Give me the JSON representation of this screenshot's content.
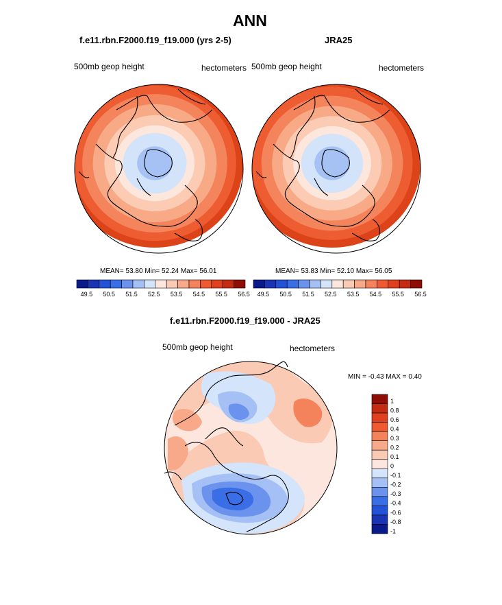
{
  "page_title": "ANN",
  "chart_data": [
    {
      "type": "contour-map",
      "title": "f.e11.rbn.F2000.f19_f19.000 (yrs 2-5)",
      "left_label": "500mb geop height",
      "right_label": "hectometers",
      "stats_text": "MEAN=  53.80  Min=  52.24  Max=  56.01",
      "stats": {
        "mean": 53.8,
        "min": 52.24,
        "max": 56.01
      },
      "colorbar": {
        "colors": [
          "#0a1a8a",
          "#1b33b5",
          "#2452d6",
          "#3a6ee6",
          "#6b93ee",
          "#a5c0f4",
          "#d4e4fa",
          "#fde6dd",
          "#fbcab5",
          "#f8a98a",
          "#f4835c",
          "#ef5a30",
          "#e0401e",
          "#c42b12",
          "#8e0e06"
        ],
        "tick_labels": [
          "49.5",
          "50.5",
          "51.5",
          "52.5",
          "53.5",
          "54.5",
          "55.5",
          "56.5"
        ]
      },
      "rings": [
        {
          "r": 1.0,
          "color": "#dc4319"
        },
        {
          "r": 0.92,
          "color": "#ee5c31"
        },
        {
          "r": 0.82,
          "color": "#f4845c"
        },
        {
          "r": 0.7,
          "color": "#f8aa87"
        },
        {
          "r": 0.57,
          "color": "#fbcbb4"
        },
        {
          "r": 0.45,
          "color": "#fde7dc"
        },
        {
          "r": 0.36,
          "color": "#d3e3fa"
        },
        {
          "r": 0.2,
          "color": "#a6c1f4"
        }
      ]
    },
    {
      "type": "contour-map",
      "title": "JRA25",
      "left_label": "500mb geop height",
      "right_label": "hectometers",
      "stats_text": "MEAN=  53.83  Min=  52.10  Max=  56.05",
      "stats": {
        "mean": 53.83,
        "min": 52.1,
        "max": 56.05
      },
      "colorbar": {
        "colors": [
          "#0a1a8a",
          "#1b33b5",
          "#2452d6",
          "#3a6ee6",
          "#6b93ee",
          "#a5c0f4",
          "#d4e4fa",
          "#fde6dd",
          "#fbcab5",
          "#f8a98a",
          "#f4835c",
          "#ef5a30",
          "#e0401e",
          "#c42b12",
          "#8e0e06"
        ],
        "tick_labels": [
          "49.5",
          "50.5",
          "51.5",
          "52.5",
          "53.5",
          "54.5",
          "55.5",
          "56.5"
        ]
      },
      "rings": [
        {
          "r": 1.0,
          "color": "#dc4319"
        },
        {
          "r": 0.91,
          "color": "#ee5c31"
        },
        {
          "r": 0.8,
          "color": "#f4845c"
        },
        {
          "r": 0.68,
          "color": "#f8aa87"
        },
        {
          "r": 0.56,
          "color": "#fbcbb4"
        },
        {
          "r": 0.44,
          "color": "#fde7dc"
        },
        {
          "r": 0.35,
          "color": "#d3e3fa"
        },
        {
          "r": 0.2,
          "color": "#a6c1f4"
        }
      ]
    },
    {
      "type": "contour-map-difference",
      "title": "f.e11.rbn.F2000.f19_f19.000 - JRA25",
      "left_label": "500mb geop height",
      "right_label": "hectometers",
      "stats_text": "MIN =  -0.43 MAX =   0.40",
      "stats": {
        "min": -0.43,
        "max": 0.4
      },
      "colorbar": {
        "levels": [
          "1",
          "0.8",
          "0.6",
          "0.4",
          "0.3",
          "0.2",
          "0.1",
          "0",
          "-0.1",
          "-0.2",
          "-0.3",
          "-0.4",
          "-0.6",
          "-0.8",
          "-1"
        ],
        "colors": [
          "#8e0e06",
          "#c42b12",
          "#e0401e",
          "#ef5a30",
          "#f4835c",
          "#f8a98a",
          "#fbcab5",
          "#fde6dd",
          "#d4e4fa",
          "#a5c0f4",
          "#6b93ee",
          "#3a6ee6",
          "#2452d6",
          "#1b33b5",
          "#0a1a8a"
        ]
      }
    }
  ]
}
